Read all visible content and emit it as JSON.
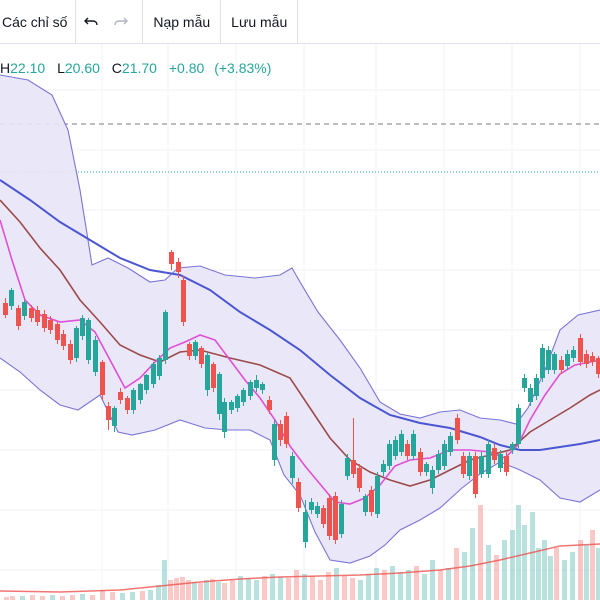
{
  "toolbar": {
    "indicators_label": "Các chỉ số",
    "undo_icon": "undo-icon",
    "redo_icon": "redo-icon",
    "load_template_label": "Nạp mẫu",
    "save_template_label": "Lưu mẫu"
  },
  "legend": {
    "high_value": "22.10",
    "low_key": "L",
    "low_value": "20.60",
    "close_key": "C",
    "close_value": "21.70",
    "change": "+0.80",
    "change_pct": "(+3.83%)"
  },
  "colors": {
    "up": "#26a69a",
    "down": "#ef5350",
    "band_fill": "#e8e6f7",
    "band_line": "#7a74d8",
    "ma_slow": "#4b56d2",
    "ma_mid": "#9c4a4a",
    "ma_fast": "#e04fd6"
  }
}
